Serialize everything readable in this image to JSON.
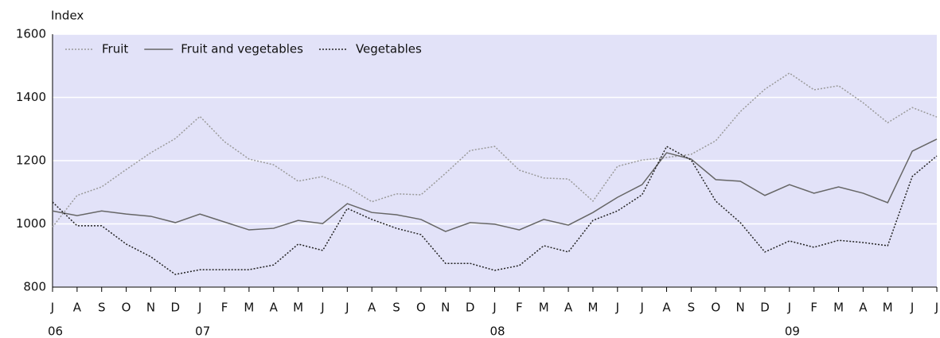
{
  "chart_data": {
    "type": "line",
    "y_label": "Index",
    "categories": [
      "J",
      "A",
      "S",
      "O",
      "N",
      "D",
      "J",
      "F",
      "M",
      "A",
      "M",
      "J",
      "J",
      "A",
      "S",
      "O",
      "N",
      "D",
      "J",
      "F",
      "M",
      "A",
      "M",
      "J",
      "J",
      "A",
      "S",
      "O",
      "N",
      "D",
      "J",
      "F",
      "M",
      "A",
      "M",
      "J",
      "J"
    ],
    "year_row": [
      "06",
      null,
      null,
      null,
      null,
      null,
      "07",
      null,
      null,
      null,
      null,
      null,
      null,
      null,
      null,
      null,
      null,
      null,
      "08",
      null,
      null,
      null,
      null,
      null,
      null,
      null,
      null,
      null,
      null,
      null,
      "09",
      null,
      null,
      null,
      null,
      null,
      null
    ],
    "series": [
      {
        "name": "Fruit",
        "color": "#9a9a9a",
        "dash": "2,2",
        "values": [
          990,
          1090,
          1117,
          1172,
          1225,
          1270,
          1340,
          1260,
          1205,
          1187,
          1135,
          1150,
          1117,
          1070,
          1095,
          1092,
          1160,
          1232,
          1245,
          1170,
          1145,
          1142,
          1072,
          1182,
          1202,
          1210,
          1220,
          1263,
          1355,
          1426,
          1477,
          1424,
          1437,
          1383,
          1320,
          1368,
          1338
        ]
      },
      {
        "name": "Fruit and vegetables",
        "color": "#666666",
        "dash": "none",
        "values": [
          1041,
          1026,
          1041,
          1031,
          1024,
          1004,
          1031,
          1006,
          981,
          986,
          1011,
          1001,
          1064,
          1036,
          1029,
          1014,
          976,
          1004,
          999,
          981,
          1014,
          996,
          1036,
          1084,
          1124,
          1225,
          1205,
          1140,
          1135,
          1090,
          1124,
          1097,
          1117,
          1097,
          1067,
          1230,
          1268
        ]
      },
      {
        "name": "Vegetables",
        "color": "#222222",
        "dash": "2,2",
        "values": [
          1069,
          994,
          994,
          936,
          896,
          840,
          855,
          855,
          855,
          870,
          936,
          916,
          1049,
          1014,
          986,
          966,
          875,
          875,
          853,
          868,
          931,
          911,
          1011,
          1041,
          1092,
          1245,
          1202,
          1072,
          1004,
          911,
          946,
          926,
          948,
          941,
          931,
          1150,
          1215
        ]
      }
    ],
    "ylim": [
      800,
      1600
    ],
    "yticks": [
      800,
      1000,
      1200,
      1400,
      1600
    ],
    "grid": true,
    "legend": "top-left"
  }
}
